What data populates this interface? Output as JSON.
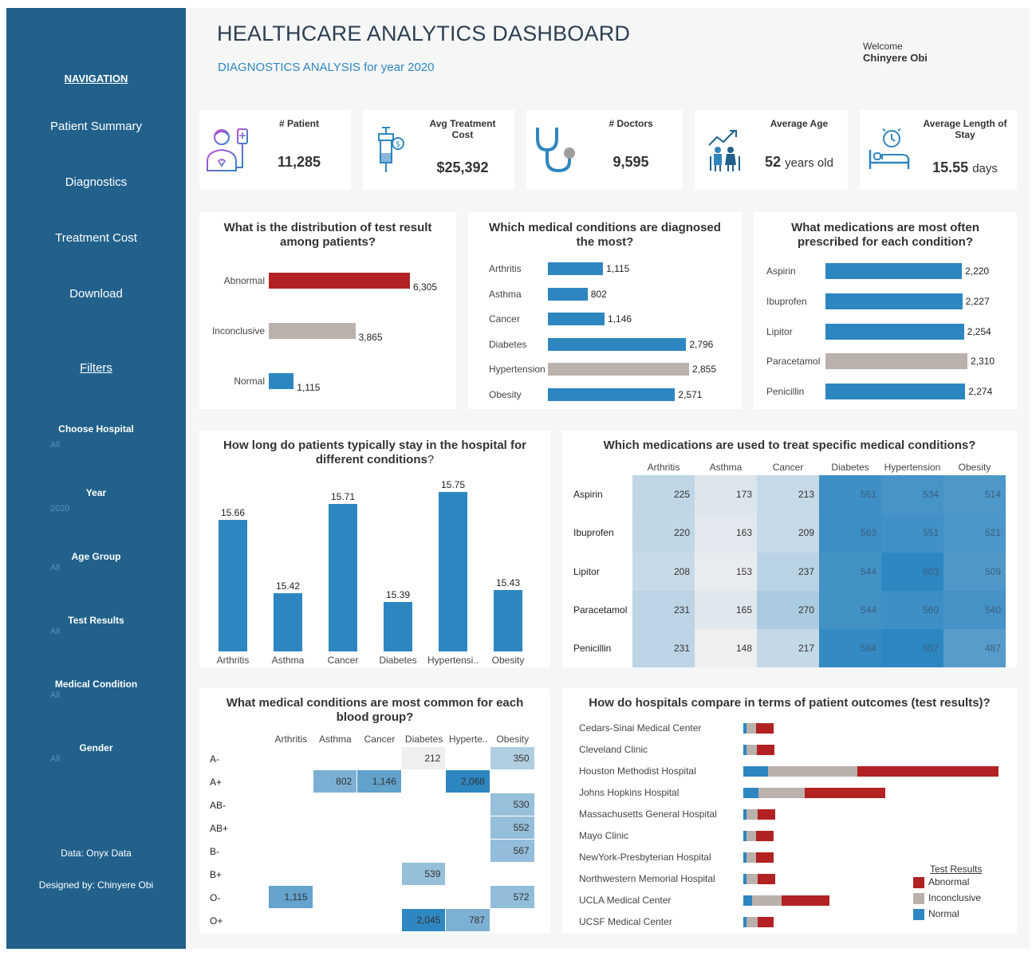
{
  "sidebar": {
    "nav_heading": "NAVIGATION",
    "nav_items": [
      "Patient Summary",
      "Diagnostics",
      "Treatment Cost",
      "Download"
    ],
    "filters_heading": "Filters",
    "filters": [
      {
        "label": "Choose Hospital",
        "value": "All"
      },
      {
        "label": "Year",
        "value": "2020"
      },
      {
        "label": "Age Group",
        "value": "All"
      },
      {
        "label": "Test Results",
        "value": "All"
      },
      {
        "label": "Medical Condition",
        "value": "All"
      },
      {
        "label": "Gender",
        "value": "All"
      }
    ],
    "data_source": "Data: Onyx Data",
    "designer": "Designed by: Chinyere Obi",
    "background_color": "#21618c"
  },
  "header": {
    "title": "HEALTHCARE ANALYTICS DASHBOARD",
    "subtitle": "DIAGNOSTICS ANALYSIS for year 2020",
    "welcome": "Welcome",
    "user_name": "Chinyere  Obi"
  },
  "kpis": [
    {
      "label": "# Patient",
      "value": "11,285",
      "unit": "",
      "icon": "patient-icon"
    },
    {
      "label": "Avg Treatment Cost",
      "value": "$25,392",
      "unit": "",
      "icon": "syringe-icon"
    },
    {
      "label": "# Doctors",
      "value": "9,595",
      "unit": "",
      "icon": "stethoscope-icon"
    },
    {
      "label": "Average Age",
      "value": "52",
      "unit": "years old",
      "icon": "elderly-couple-icon"
    },
    {
      "label": "Average Length of Stay",
      "value": "15.55",
      "unit": "days",
      "icon": "hospital-bed-icon"
    }
  ],
  "colors": {
    "blue": "#2e86c1",
    "red": "#b22222",
    "grey": "#bab0ac"
  },
  "chart_data": [
    {
      "type": "bar",
      "orientation": "horizontal",
      "title": "What is the distribution of test result among patients?",
      "categories": [
        "Abnormal",
        "Inconclusive",
        "Normal"
      ],
      "values": [
        6305,
        3865,
        1115
      ],
      "value_labels": [
        "6,305",
        "3,865",
        "1,115"
      ],
      "bar_colors": [
        "#b22222",
        "#bab0ac",
        "#2e86c1"
      ]
    },
    {
      "type": "bar",
      "orientation": "horizontal",
      "title": "Which medical conditions are diagnosed the most?",
      "categories": [
        "Arthritis",
        "Asthma",
        "Cancer",
        "Diabetes",
        "Hypertension",
        "Obesity"
      ],
      "values": [
        1115,
        802,
        1146,
        2796,
        2855,
        2571
      ],
      "value_labels": [
        "1,115",
        "802",
        "1,146",
        "2,796",
        "2,855",
        "2,571"
      ],
      "bar_colors": [
        "#2e86c1",
        "#2e86c1",
        "#2e86c1",
        "#2e86c1",
        "#bab0ac",
        "#2e86c1"
      ]
    },
    {
      "type": "bar",
      "orientation": "horizontal",
      "title": "What medications are most often prescribed for each condition?",
      "categories": [
        "Aspirin",
        "Ibuprofen",
        "Lipitor",
        "Paracetamol",
        "Penicillin"
      ],
      "values": [
        2220,
        2227,
        2254,
        2310,
        2274
      ],
      "value_labels": [
        "2,220",
        "2,227",
        "2,254",
        "2,310",
        "2,274"
      ],
      "bar_colors": [
        "#2e86c1",
        "#2e86c1",
        "#2e86c1",
        "#bab0ac",
        "#2e86c1"
      ]
    },
    {
      "type": "bar",
      "orientation": "vertical",
      "title_main": "How long do patients typically stay in the hospital for different conditions",
      "title_end": "?",
      "categories": [
        "Arthritis",
        "Asthma",
        "Cancer",
        "Diabetes",
        "Hypertensi..",
        "Obesity"
      ],
      "values": [
        15.66,
        15.42,
        15.71,
        15.39,
        15.75,
        15.43
      ],
      "value_labels": [
        "15.66",
        "15.42",
        "15.71",
        "15.39",
        "15.75",
        "15.43"
      ]
    },
    {
      "type": "heatmap",
      "title": "Which medications are used to treat specific medical conditions?",
      "columns": [
        "Arthritis",
        "Asthma",
        "Cancer",
        "Diabetes",
        "Hypertension",
        "Obesity"
      ],
      "rows": [
        "Aspirin",
        "Ibuprofen",
        "Lipitor",
        "Paracetamol",
        "Penicillin"
      ],
      "values": [
        [
          225,
          173,
          213,
          561,
          534,
          514
        ],
        [
          220,
          163,
          209,
          563,
          551,
          521
        ],
        [
          208,
          153,
          237,
          544,
          603,
          509
        ],
        [
          231,
          165,
          270,
          544,
          560,
          540
        ],
        [
          231,
          148,
          217,
          584,
          607,
          487
        ]
      ]
    },
    {
      "type": "heatmap",
      "title": "What medical conditions are most common for each blood group?",
      "columns": [
        "Arthritis",
        "Asthma",
        "Cancer",
        "Diabetes",
        "Hyperte..",
        "Obesity"
      ],
      "rows": [
        "A-",
        "A+",
        "AB-",
        "AB+",
        "B-",
        "B+",
        "O-",
        "O+"
      ],
      "values": [
        [
          null,
          null,
          null,
          212,
          null,
          350
        ],
        [
          null,
          802,
          1146,
          null,
          2068,
          null
        ],
        [
          null,
          null,
          null,
          null,
          null,
          530
        ],
        [
          null,
          null,
          null,
          null,
          null,
          552
        ],
        [
          null,
          null,
          null,
          null,
          null,
          567
        ],
        [
          null,
          null,
          null,
          539,
          null,
          null
        ],
        [
          1115,
          null,
          null,
          null,
          null,
          572
        ],
        [
          null,
          null,
          null,
          2045,
          787,
          null
        ]
      ],
      "value_labels": [
        [
          null,
          null,
          null,
          "212",
          null,
          "350"
        ],
        [
          null,
          "802",
          "1,146",
          null,
          "2,068",
          null
        ],
        [
          null,
          null,
          null,
          null,
          null,
          "530"
        ],
        [
          null,
          null,
          null,
          null,
          null,
          "552"
        ],
        [
          null,
          null,
          null,
          null,
          null,
          "567"
        ],
        [
          null,
          null,
          null,
          "539",
          null,
          null
        ],
        [
          "1,115",
          null,
          null,
          null,
          null,
          "572"
        ],
        [
          null,
          null,
          null,
          "2,045",
          "787",
          null
        ]
      ]
    },
    {
      "type": "bar",
      "orientation": "horizontal",
      "stacked": true,
      "title": "How do hospitals compare in terms of patient outcomes (test results)?",
      "categories": [
        "Cedars-Sinai Medical Center",
        "Cleveland Clinic",
        "Houston Methodist Hospital",
        "Johns Hopkins Hospital",
        "Massachusetts General Hospital",
        "Mayo Clinic",
        "NewYork-Presbyterian Hospital",
        "Northwestern Memorial Hospital",
        "UCLA Medical Center",
        "UCSF Medical Center"
      ],
      "series": [
        {
          "name": "Normal",
          "values": [
            20,
            25,
            175,
            105,
            20,
            20,
            20,
            20,
            60,
            20
          ]
        },
        {
          "name": "Inconclusive",
          "values": [
            70,
            70,
            620,
            325,
            80,
            70,
            70,
            80,
            210,
            80
          ]
        },
        {
          "name": "Abnormal",
          "values": [
            120,
            120,
            990,
            565,
            125,
            120,
            120,
            125,
            330,
            110
          ]
        }
      ],
      "legend_title": "Test Results",
      "legend": [
        "Abnormal",
        "Inconclusive",
        "Normal"
      ],
      "legend_colors": [
        "#b22222",
        "#bab0ac",
        "#2e86c1"
      ],
      "series_colors": [
        "#2e86c1",
        "#bab0ac",
        "#b22222"
      ]
    }
  ]
}
